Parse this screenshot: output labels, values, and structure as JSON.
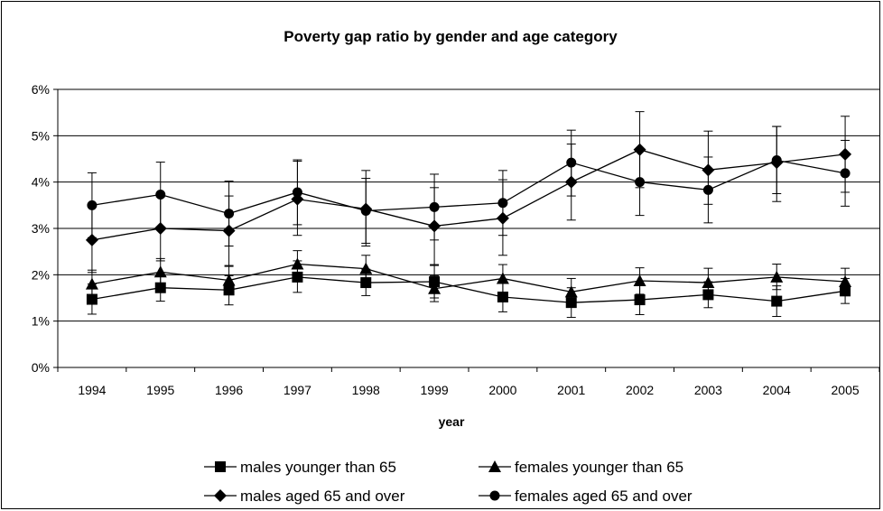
{
  "chart_data": {
    "type": "line",
    "title": "Poverty gap ratio by gender and age category",
    "xlabel": "year",
    "ylabel": "",
    "categories": [
      "1994",
      "1995",
      "1996",
      "1997",
      "1998",
      "1999",
      "2000",
      "2001",
      "2002",
      "2003",
      "2004",
      "2005"
    ],
    "ylim": [
      0,
      6
    ],
    "yticks": [
      0,
      1,
      2,
      3,
      4,
      5,
      6
    ],
    "ytick_labels": [
      "0%",
      "1%",
      "2%",
      "3%",
      "4%",
      "5%",
      "6%"
    ],
    "grid": true,
    "legend_position": "bottom",
    "series": [
      {
        "name": "males younger than 65",
        "marker": "square",
        "values": [
          1.47,
          1.72,
          1.67,
          1.95,
          1.83,
          1.85,
          1.52,
          1.4,
          1.46,
          1.57,
          1.43,
          1.65
        ],
        "err_lo": [
          1.15,
          1.43,
          1.35,
          1.62,
          1.55,
          1.5,
          1.2,
          1.08,
          1.14,
          1.29,
          1.1,
          1.38
        ],
        "err_hi": [
          1.8,
          2.0,
          1.98,
          2.3,
          2.12,
          2.2,
          1.85,
          1.72,
          1.78,
          1.85,
          1.76,
          1.92
        ]
      },
      {
        "name": "females younger than 65",
        "marker": "triangle",
        "values": [
          1.8,
          2.06,
          1.88,
          2.23,
          2.13,
          1.7,
          1.92,
          1.63,
          1.87,
          1.83,
          1.95,
          1.85
        ],
        "err_lo": [
          1.52,
          1.78,
          1.58,
          1.95,
          1.85,
          1.42,
          1.62,
          1.35,
          1.58,
          1.52,
          1.68,
          1.58
        ],
        "err_hi": [
          2.1,
          2.35,
          2.18,
          2.52,
          2.42,
          1.98,
          2.22,
          1.92,
          2.15,
          2.14,
          2.23,
          2.14
        ]
      },
      {
        "name": "males aged 65 and over",
        "marker": "diamond",
        "values": [
          2.75,
          3.0,
          2.95,
          3.63,
          3.42,
          3.05,
          3.22,
          4.0,
          4.7,
          4.26,
          4.42,
          4.6
        ],
        "err_lo": [
          2.05,
          2.3,
          2.2,
          2.85,
          2.62,
          2.22,
          2.42,
          3.18,
          3.88,
          3.52,
          3.58,
          3.78
        ],
        "err_hi": [
          3.48,
          3.68,
          3.7,
          4.45,
          4.25,
          3.88,
          4.05,
          4.82,
          5.52,
          5.1,
          5.2,
          5.42
        ]
      },
      {
        "name": "females aged 65 and over",
        "marker": "circle",
        "values": [
          3.5,
          3.73,
          3.32,
          3.78,
          3.38,
          3.46,
          3.55,
          4.42,
          4.0,
          3.83,
          4.47,
          4.19
        ],
        "err_lo": [
          2.8,
          3.03,
          2.62,
          3.08,
          2.68,
          2.75,
          2.85,
          3.7,
          3.28,
          3.12,
          3.75,
          3.48
        ],
        "err_hi": [
          4.2,
          4.43,
          4.02,
          4.48,
          4.08,
          4.17,
          4.25,
          5.12,
          4.72,
          4.54,
          5.2,
          4.9
        ]
      }
    ]
  }
}
